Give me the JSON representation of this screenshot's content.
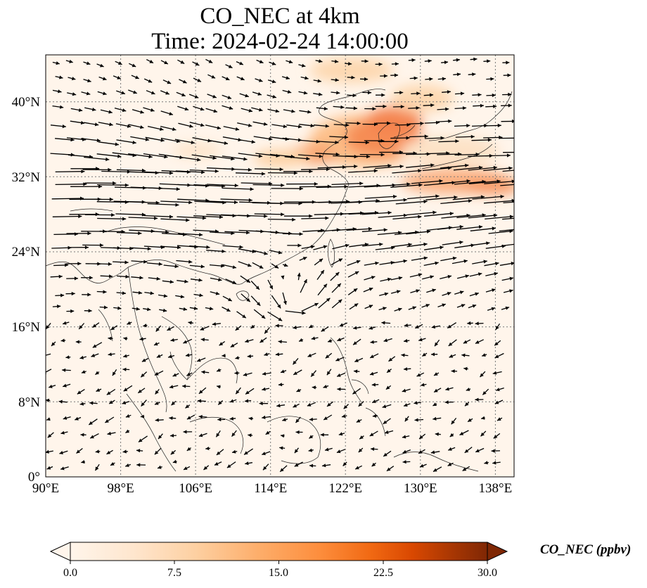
{
  "title": {
    "line1": "CO_NEC at 4km",
    "line2": "Time: 2024-02-24 14:00:00"
  },
  "map": {
    "extent": {
      "lon": [
        90,
        140
      ],
      "lat": [
        0,
        45
      ]
    },
    "lon_ticks": [
      "90°E",
      "98°E",
      "106°E",
      "114°E",
      "122°E",
      "130°E",
      "138°E"
    ],
    "lat_ticks": [
      "0°",
      "8°N",
      "16°N",
      "24°N",
      "32°N",
      "40°N"
    ],
    "gridlines": "dotted",
    "colormap": "OrRd",
    "background_color": "#fff5eb",
    "wind_vectors": "quiver"
  },
  "colorbar": {
    "label": "CO_NEC (ppbv)",
    "ticks": [
      "0.0",
      "7.5",
      "15.0",
      "22.5",
      "30.0"
    ],
    "min": 0,
    "max": 30,
    "extend": "both",
    "colors": [
      "#fff5eb",
      "#fee6ce",
      "#fdd0a2",
      "#fdae6b",
      "#fd8d3c",
      "#f16913",
      "#d94801",
      "#a63603",
      "#7f2704"
    ]
  }
}
